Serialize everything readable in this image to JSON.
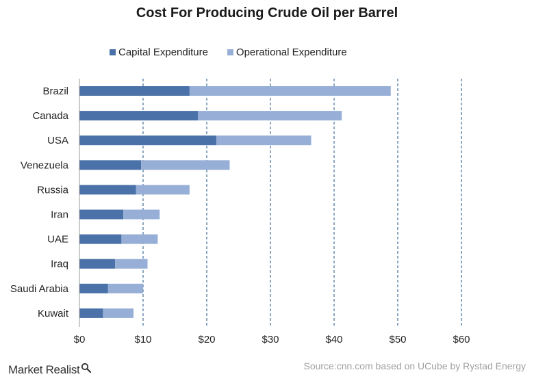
{
  "title": "Cost For Producing Crude Oil per Barrel",
  "legend": {
    "capital": "Capital Expenditure",
    "operational": "Operational Expenditure"
  },
  "colors": {
    "capital": "#4a72a8",
    "operational": "#97afd6",
    "gridline": "#2f5f8f"
  },
  "footer": {
    "brand": "Market Realist",
    "brand_icon": "magnifier-icon",
    "source": "Source:cnn.com based on UCube by Rystad Energy"
  },
  "chart_data": {
    "type": "bar",
    "orientation": "horizontal",
    "stacked": true,
    "title": "Cost For Producing Crude Oil per Barrel",
    "categories": [
      "Brazil",
      "Canada",
      "USA",
      "Venezuela",
      "Russia",
      "Iran",
      "UAE",
      "Iraq",
      "Saudi Arabia",
      "Kuwait"
    ],
    "series": [
      {
        "name": "Capital Expenditure",
        "values": [
          17.3,
          18.6,
          21.5,
          9.7,
          8.9,
          6.9,
          6.6,
          5.6,
          4.5,
          3.7
        ]
      },
      {
        "name": "Operational Expenditure",
        "values": [
          31.6,
          22.6,
          14.9,
          13.9,
          8.4,
          5.7,
          5.7,
          5.1,
          5.5,
          4.8
        ]
      }
    ],
    "xlim": [
      0,
      60
    ],
    "xticks": [
      "$0",
      "$10",
      "$20",
      "$30",
      "$40",
      "$50",
      "$60"
    ],
    "xtick_values": [
      0,
      10,
      20,
      30,
      40,
      50,
      60
    ],
    "xlabel": "",
    "ylabel": "",
    "grid": "vertical dashed",
    "legend_position": "top"
  }
}
